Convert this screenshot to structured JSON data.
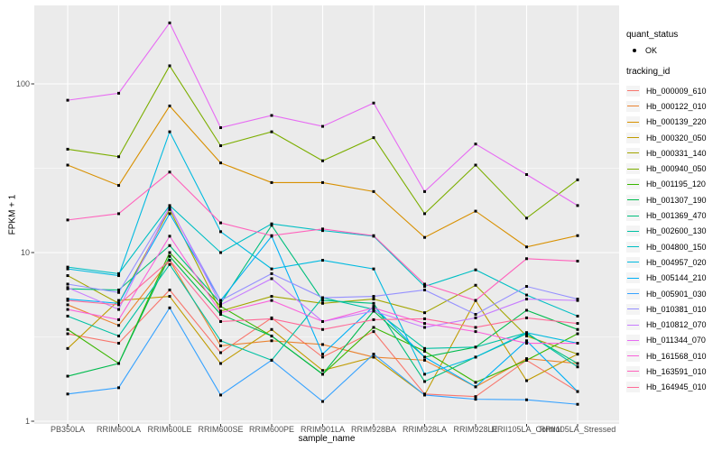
{
  "chart": {
    "y_axis_title": "FPKM + 1",
    "x_axis_title": "sample_name"
  },
  "legend": {
    "quant_status_title": "quant_status",
    "quant_status_entries": [
      {
        "label": "OK",
        "marker": "point",
        "color": "#000000"
      }
    ],
    "tracking_id_title": "tracking_id"
  },
  "chart_data": {
    "type": "line",
    "title": "",
    "xlabel": "sample_name",
    "ylabel": "FPKM + 1",
    "y_scale": "log10",
    "ylim": [
      1,
      300
    ],
    "y_ticks": [
      1,
      10,
      100
    ],
    "y_minor_gridlines": [
      3.1623,
      31.623
    ],
    "grid": true,
    "legend_position": "right",
    "panel_background": "#EBEBEB",
    "gridline_color": "#FFFFFF",
    "point_marker": {
      "shape": "square",
      "color": "#000000",
      "status_label": "OK"
    },
    "categories": [
      "PB350LA",
      "RRIM600LA",
      "RRIM600LE",
      "RRIM600SE",
      "RRIM600PE",
      "RRIM901LA",
      "RRIM928BA",
      "RRIM928LA",
      "RRIM928LE",
      "RRII105LA_Control",
      "RRII105LA_Stressed"
    ],
    "series": [
      {
        "name": "Hb_000009_610",
        "color": "#F8766D",
        "values": [
          3.3,
          2.9,
          6.0,
          2.55,
          4.1,
          2.4,
          3.4,
          1.45,
          1.4,
          2.3,
          1.5
        ]
      },
      {
        "name": "Hb_000122_010",
        "color": "#EA8331",
        "values": [
          4.9,
          3.7,
          9.0,
          2.8,
          3.0,
          2.85,
          2.4,
          2.3,
          1.6,
          2.35,
          2.2
        ]
      },
      {
        "name": "Hb_000139_220",
        "color": "#D89000",
        "values": [
          33,
          25,
          74,
          34,
          26,
          26,
          23,
          12.3,
          17.6,
          10.8,
          12.6
        ]
      },
      {
        "name": "Hb_000320_050",
        "color": "#C09B00",
        "values": [
          2.7,
          5.2,
          5.5,
          2.2,
          3.5,
          2.0,
          2.4,
          1.43,
          5.2,
          1.74,
          2.5
        ]
      },
      {
        "name": "Hb_000331_140",
        "color": "#A3A500",
        "values": [
          7.3,
          5.0,
          18,
          4.5,
          5.5,
          5.0,
          5.3,
          4.4,
          6.4,
          3.2,
          2.5
        ]
      },
      {
        "name": "Hb_000940_050",
        "color": "#7CAE00",
        "values": [
          41,
          37,
          128,
          43,
          52,
          35,
          48,
          17,
          33,
          16,
          27
        ]
      },
      {
        "name": "Hb_001195_120",
        "color": "#39B600",
        "values": [
          3.5,
          2.2,
          10,
          4.8,
          3.2,
          1.9,
          3.6,
          2.6,
          1.7,
          2.3,
          3.3
        ]
      },
      {
        "name": "Hb_001307_190",
        "color": "#00BB4E",
        "values": [
          1.85,
          2.2,
          9.5,
          4.3,
          3.2,
          1.9,
          4.5,
          2.4,
          2.75,
          4.55,
          3.5
        ]
      },
      {
        "name": "Hb_001369_470",
        "color": "#00BF7D",
        "values": [
          6.1,
          6.0,
          11,
          5.0,
          14.5,
          5.2,
          5.0,
          1.72,
          2.4,
          3.3,
          2.2
        ]
      },
      {
        "name": "Hb_002600_130",
        "color": "#00C1A3",
        "values": [
          4.2,
          3.2,
          8.5,
          3.0,
          2.3,
          5.4,
          4.6,
          2.7,
          2.75,
          3.35,
          2.1
        ]
      },
      {
        "name": "Hb_004800_150",
        "color": "#00BFC4",
        "values": [
          8.2,
          7.5,
          19,
          10,
          14.8,
          13.5,
          12.5,
          6.3,
          7.9,
          5.6,
          4.2
        ]
      },
      {
        "name": "Hb_004957_020",
        "color": "#00BAE0",
        "values": [
          8.0,
          7.3,
          52,
          13.3,
          8.0,
          9.0,
          8.0,
          1.9,
          2.4,
          3.35,
          2.9
        ]
      },
      {
        "name": "Hb_005144_210",
        "color": "#00B0F6",
        "values": [
          5.3,
          5.0,
          17,
          5.2,
          12.5,
          2.5,
          4.8,
          2.4,
          1.6,
          3.0,
          1.5
        ]
      },
      {
        "name": "Hb_005901_030",
        "color": "#35A2FF",
        "values": [
          1.45,
          1.58,
          4.7,
          1.43,
          2.3,
          1.31,
          2.5,
          1.43,
          1.35,
          1.34,
          1.26
        ]
      },
      {
        "name": "Hb_010381_010",
        "color": "#9590FF",
        "values": [
          6.5,
          5.8,
          18.5,
          5.2,
          7.5,
          5.4,
          5.5,
          6.0,
          4.3,
          6.3,
          5.3
        ]
      },
      {
        "name": "Hb_010812_070",
        "color": "#C77CFF",
        "values": [
          6.2,
          4.6,
          18.8,
          4.9,
          7.0,
          3.9,
          4.5,
          3.6,
          4.1,
          5.3,
          5.2
        ]
      },
      {
        "name": "Hb_011344_070",
        "color": "#E76BF3",
        "values": [
          80,
          88,
          230,
          55,
          65,
          56,
          77,
          23,
          44,
          29,
          19
        ]
      },
      {
        "name": "Hb_161568_010",
        "color": "#FA62DB",
        "values": [
          4.6,
          4.0,
          12.5,
          4.4,
          5.2,
          3.9,
          4.7,
          3.8,
          3.4,
          2.9,
          2.9
        ]
      },
      {
        "name": "Hb_163591_010",
        "color": "#FF62BC",
        "values": [
          15.6,
          17,
          30,
          15,
          12.6,
          13.8,
          12.6,
          6.5,
          5.2,
          9.2,
          8.9
        ]
      },
      {
        "name": "Hb_164945_010",
        "color": "#FF6A98",
        "values": [
          5.2,
          4.9,
          9.0,
          3.9,
          4.05,
          3.5,
          4.0,
          4.05,
          3.6,
          4.1,
          3.8
        ]
      }
    ]
  }
}
